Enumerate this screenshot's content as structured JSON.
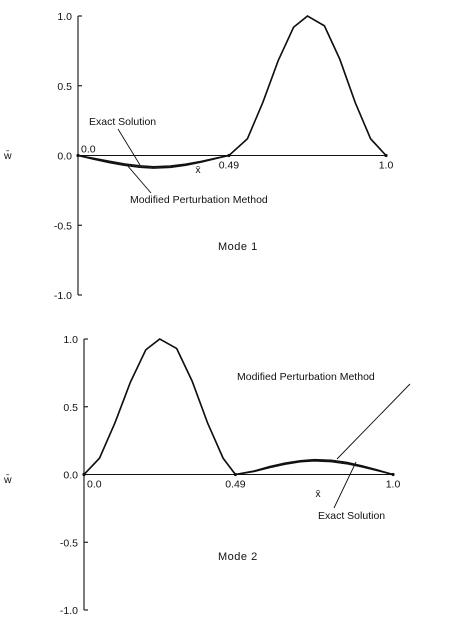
{
  "chart_data": [
    {
      "type": "line",
      "title": "Mode 1",
      "ylabel": "w̄",
      "xlabel": "x̄",
      "ylim": [
        -1.0,
        1.0
      ],
      "xlim": [
        0.0,
        1.0
      ],
      "yticks": [
        "1.0",
        "0.5",
        "0.0",
        "-0.5",
        "-1.0"
      ],
      "ytick_values": [
        1.0,
        0.5,
        0.0,
        -0.5,
        -1.0
      ],
      "xtick_labels": [
        "0.0",
        "0.49",
        "1.0"
      ],
      "xtick_values": [
        0.0,
        0.49,
        1.0
      ],
      "grid": false,
      "series": [
        {
          "name": "Exact Solution",
          "x": [
            0.0,
            0.05,
            0.1,
            0.15,
            0.2,
            0.245,
            0.3,
            0.35,
            0.4,
            0.45,
            0.49,
            0.55,
            0.6,
            0.65,
            0.7,
            0.745,
            0.8,
            0.85,
            0.9,
            0.95,
            1.0
          ],
          "y": [
            0.0,
            -0.02,
            -0.04,
            -0.06,
            -0.074,
            -0.08,
            -0.075,
            -0.062,
            -0.042,
            -0.018,
            0.0,
            0.12,
            0.38,
            0.68,
            0.92,
            1.0,
            0.93,
            0.69,
            0.38,
            0.12,
            0.0
          ]
        },
        {
          "name": "Modified Perturbation Method",
          "x": [
            0.0,
            0.05,
            0.1,
            0.15,
            0.2,
            0.245,
            0.3,
            0.35,
            0.4,
            0.45,
            0.49,
            0.55,
            0.6,
            0.65,
            0.7,
            0.745,
            0.8,
            0.85,
            0.9,
            0.95,
            1.0
          ],
          "y": [
            0.0,
            -0.026,
            -0.05,
            -0.07,
            -0.084,
            -0.09,
            -0.085,
            -0.07,
            -0.048,
            -0.021,
            0.0,
            0.12,
            0.38,
            0.68,
            0.92,
            1.0,
            0.93,
            0.69,
            0.38,
            0.12,
            0.0
          ]
        }
      ],
      "annotations": [
        "Exact Solution",
        "Modified Perturbation Method"
      ]
    },
    {
      "type": "line",
      "title": "Mode 2",
      "ylabel": "w̄",
      "xlabel": "x̄",
      "ylim": [
        -1.0,
        1.0
      ],
      "xlim": [
        0.0,
        1.0
      ],
      "yticks": [
        "1.0",
        "0.5",
        "0.0",
        "-0.5",
        "-1.0"
      ],
      "ytick_values": [
        1.0,
        0.5,
        0.0,
        -0.5,
        -1.0
      ],
      "xtick_labels": [
        "0.0",
        "0.49",
        "1.0"
      ],
      "xtick_values": [
        0.0,
        0.49,
        1.0
      ],
      "grid": false,
      "series": [
        {
          "name": "Exact Solution",
          "x": [
            0.0,
            0.05,
            0.1,
            0.15,
            0.2,
            0.245,
            0.3,
            0.35,
            0.4,
            0.45,
            0.49,
            0.55,
            0.6,
            0.65,
            0.7,
            0.745,
            0.8,
            0.85,
            0.9,
            0.95,
            1.0
          ],
          "y": [
            0.0,
            0.12,
            0.38,
            0.68,
            0.92,
            1.0,
            0.93,
            0.69,
            0.38,
            0.12,
            0.0,
            0.022,
            0.05,
            0.075,
            0.094,
            0.1,
            0.095,
            0.08,
            0.056,
            0.028,
            0.0
          ]
        },
        {
          "name": "Modified Perturbation Method",
          "x": [
            0.0,
            0.05,
            0.1,
            0.15,
            0.2,
            0.245,
            0.3,
            0.35,
            0.4,
            0.45,
            0.49,
            0.55,
            0.6,
            0.65,
            0.7,
            0.745,
            0.8,
            0.85,
            0.9,
            0.95,
            1.0
          ],
          "y": [
            0.0,
            0.12,
            0.38,
            0.68,
            0.92,
            1.0,
            0.93,
            0.69,
            0.38,
            0.12,
            0.0,
            0.026,
            0.058,
            0.084,
            0.102,
            0.11,
            0.105,
            0.089,
            0.064,
            0.033,
            0.0
          ]
        }
      ],
      "annotations": [
        "Modified Perturbation Method",
        "Exact Solution"
      ]
    }
  ]
}
